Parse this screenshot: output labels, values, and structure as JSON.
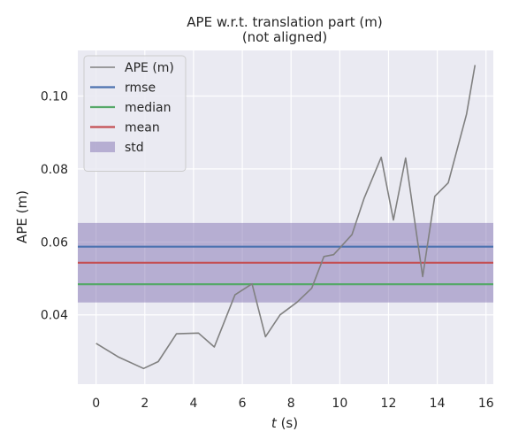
{
  "chart_data": {
    "type": "line",
    "title_line1": "APE w.r.t. translation part (m)",
    "title_line2": "(not aligned)",
    "xlabel_var": "t",
    "xlabel_unit": " (s)",
    "ylabel": "APE (m)",
    "xlim": [
      -0.75,
      16.3
    ],
    "ylim": [
      0.021,
      0.1125
    ],
    "xticks": [
      0,
      2,
      4,
      6,
      8,
      10,
      12,
      14,
      16
    ],
    "xtick_labels": [
      "0",
      "2",
      "4",
      "6",
      "8",
      "10",
      "12",
      "14",
      "16"
    ],
    "yticks": [
      0.04,
      0.06,
      0.08,
      0.1
    ],
    "ytick_labels": [
      "0.04",
      "0.06",
      "0.08",
      "0.10"
    ],
    "grid": true,
    "background": "#eaeaf2",
    "legend_position": "top-left",
    "series": [
      {
        "name": "APE (m)",
        "color": "#808080",
        "x": [
          0.0,
          0.9,
          1.95,
          2.55,
          3.3,
          4.2,
          4.85,
          5.7,
          6.4,
          6.95,
          7.55,
          8.25,
          8.85,
          9.35,
          9.75,
          10.5,
          11.0,
          11.7,
          12.2,
          12.7,
          13.4,
          13.9,
          14.45,
          15.2,
          15.55
        ],
        "y": [
          0.0322,
          0.0285,
          0.0253,
          0.0272,
          0.0348,
          0.035,
          0.0312,
          0.0455,
          0.0485,
          0.034,
          0.04,
          0.0435,
          0.0473,
          0.056,
          0.0565,
          0.062,
          0.072,
          0.0832,
          0.066,
          0.083,
          0.0505,
          0.0725,
          0.0762,
          0.095,
          0.1085
        ]
      }
    ],
    "stats": [
      {
        "name": "rmse",
        "value": 0.0587,
        "color": "#4c72b0"
      },
      {
        "name": "median",
        "value": 0.0484,
        "color": "#55a868"
      },
      {
        "name": "mean",
        "value": 0.0543,
        "color": "#c44e52"
      }
    ],
    "std": {
      "name": "std",
      "low": 0.0434,
      "high": 0.0652,
      "color": "#8172b2"
    }
  }
}
